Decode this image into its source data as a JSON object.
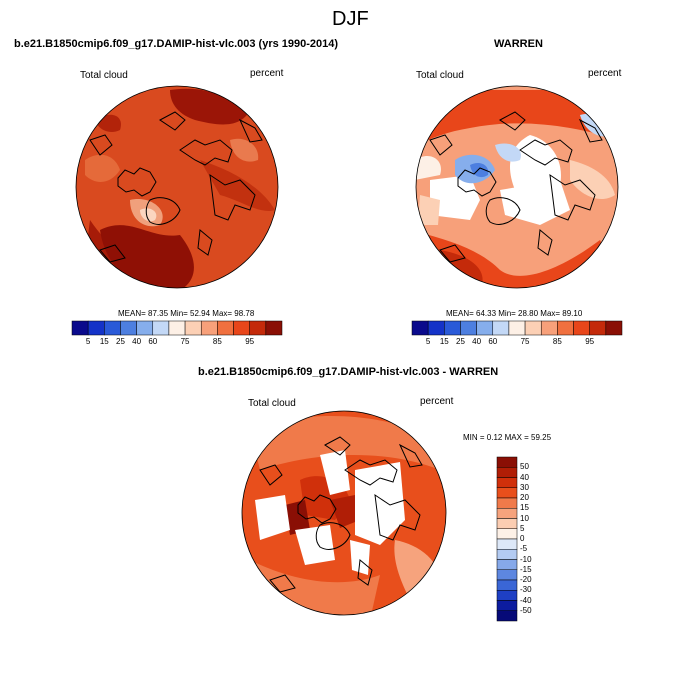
{
  "figure_title": "DJF",
  "panels": {
    "model": {
      "title": "b.e21.B1850cmip6.f09_g17.DAMIP-hist-vlc.003 (yrs 1990-2014)",
      "left_label": "Total cloud",
      "right_label": "percent",
      "stats": "MEAN=  87.35  Min=  52.94  Max=  98.78"
    },
    "obs": {
      "title": "WARREN",
      "left_label": "Total cloud",
      "right_label": "percent",
      "stats": "MEAN=  64.33  Min=  28.80  Max=  89.10"
    },
    "diff": {
      "title": "b.e21.B1850cmip6.f09_g17.DAMIP-hist-vlc.003 - WARREN",
      "left_label": "Total cloud",
      "right_label": "percent",
      "stats": "MIN =   0.12 MAX =  59.25"
    }
  },
  "colorbar_abs": {
    "colors": [
      "#0a0a8c",
      "#1433c8",
      "#2a5ad8",
      "#4d7fe0",
      "#86aeec",
      "#c3d8f6",
      "#fdf0e6",
      "#fcd0b5",
      "#f7a07a",
      "#f0703f",
      "#e8461a",
      "#c42a0a",
      "#8a0f05"
    ],
    "ticks": [
      "5",
      "15",
      "25",
      "40",
      "60",
      "75",
      "85",
      "95"
    ]
  },
  "colorbar_diff": {
    "colors": [
      "#8a0f05",
      "#b01e06",
      "#d0300b",
      "#e84f1c",
      "#f07a4a",
      "#f6a37d",
      "#fbcdb2",
      "#fdf1e7",
      "#dde8f8",
      "#b3cbf2",
      "#86a9ea",
      "#5d87e0",
      "#3a66d6",
      "#1e3fc4",
      "#0c1c9f",
      "#060a78"
    ],
    "ticks": [
      "50",
      "40",
      "30",
      "20",
      "15",
      "10",
      "5",
      "0",
      "-5",
      "-10",
      "-15",
      "-20",
      "-30",
      "-40",
      "-50"
    ]
  }
}
